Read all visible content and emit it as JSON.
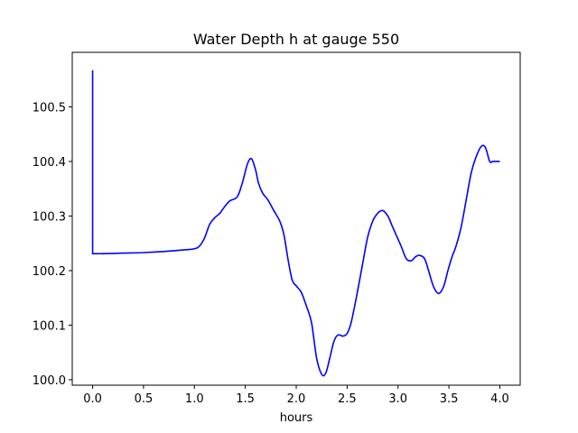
{
  "chart_data": {
    "type": "line",
    "title": "Water Depth h at gauge 550",
    "xlabel": "hours",
    "ylabel": "",
    "xlim": [
      -0.2,
      4.2
    ],
    "ylim": [
      99.99,
      100.6
    ],
    "xticks": [
      0.0,
      0.5,
      1.0,
      1.5,
      2.0,
      2.5,
      3.0,
      3.5,
      4.0
    ],
    "xtick_labels": [
      "0.0",
      "0.5",
      "1.0",
      "1.5",
      "2.0",
      "2.5",
      "3.0",
      "3.5",
      "4.0"
    ],
    "yticks": [
      100.0,
      100.1,
      100.2,
      100.3,
      100.4,
      100.5
    ],
    "ytick_labels": [
      "100.0",
      "100.1",
      "100.2",
      "100.3",
      "100.4",
      "100.5"
    ],
    "grid": false,
    "series": [
      {
        "color": "#0000ff",
        "x": [
          0.0,
          0.0,
          0.02,
          0.1,
          0.3,
          0.5,
          0.7,
          0.9,
          1.0,
          1.05,
          1.1,
          1.15,
          1.2,
          1.25,
          1.3,
          1.35,
          1.42,
          1.47,
          1.52,
          1.56,
          1.6,
          1.63,
          1.67,
          1.72,
          1.78,
          1.84,
          1.88,
          1.92,
          1.96,
          2.0,
          2.05,
          2.1,
          2.15,
          2.2,
          2.25,
          2.29,
          2.33,
          2.37,
          2.41,
          2.46,
          2.5,
          2.54,
          2.6,
          2.65,
          2.7,
          2.75,
          2.8,
          2.85,
          2.9,
          2.94,
          2.98,
          3.03,
          3.08,
          3.13,
          3.17,
          3.21,
          3.26,
          3.3,
          3.35,
          3.4,
          3.45,
          3.49,
          3.53,
          3.57,
          3.62,
          3.67,
          3.72,
          3.77,
          3.82,
          3.86,
          3.9,
          3.93,
          3.95,
          3.97,
          4.0
        ],
        "y": [
          100.567,
          100.231,
          100.231,
          100.231,
          100.232,
          100.233,
          100.235,
          100.238,
          100.24,
          100.245,
          100.26,
          100.285,
          100.297,
          100.305,
          100.318,
          100.328,
          100.335,
          100.36,
          100.395,
          100.405,
          100.385,
          100.36,
          100.342,
          100.33,
          100.31,
          100.29,
          100.265,
          100.22,
          100.183,
          100.172,
          100.16,
          100.135,
          100.105,
          100.04,
          100.01,
          100.012,
          100.04,
          100.07,
          100.082,
          100.08,
          100.085,
          100.105,
          100.16,
          100.21,
          100.26,
          100.29,
          100.305,
          100.31,
          100.3,
          100.283,
          100.266,
          100.245,
          100.222,
          100.218,
          100.225,
          100.228,
          100.222,
          100.2,
          100.17,
          100.158,
          100.172,
          100.2,
          100.225,
          100.245,
          100.28,
          100.33,
          100.38,
          100.41,
          100.428,
          100.425,
          100.4,
          100.4,
          100.4,
          100.4,
          100.4
        ]
      }
    ]
  }
}
